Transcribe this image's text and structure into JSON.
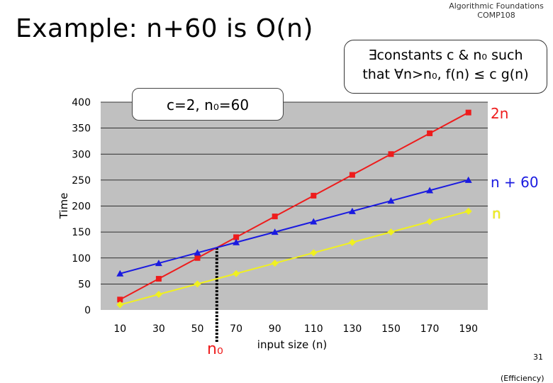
{
  "slide": {
    "title": "Example: n+60 is O(n)",
    "course": [
      "Algorithmic Foundations",
      "COMP108"
    ],
    "definition": [
      "∃constants c & n₀ such",
      "that ∀n>n₀, f(n) ≤ c g(n)"
    ],
    "c_note": "c=2, n₀=60",
    "n0_label": "n₀",
    "page_number": "31",
    "topic": "(Efficiency)"
  },
  "colors": {
    "plot_bg": "#c0c0c0",
    "series_2n": "#ee1c1c",
    "series_n60": "#1a1ae0",
    "series_n": "#f0f020"
  },
  "chart_data": {
    "type": "line",
    "xlabel": "input size (n)",
    "ylabel": "Time",
    "ylim": [
      0,
      400
    ],
    "yticks": [
      0,
      50,
      100,
      150,
      200,
      250,
      300,
      350,
      400
    ],
    "categories": [
      10,
      30,
      50,
      70,
      90,
      110,
      130,
      150,
      170,
      190
    ],
    "series": [
      {
        "name": "2n",
        "marker": "square",
        "values": [
          20,
          60,
          100,
          140,
          180,
          220,
          260,
          300,
          340,
          380
        ]
      },
      {
        "name": "n + 60",
        "marker": "triangle",
        "values": [
          70,
          90,
          110,
          130,
          150,
          170,
          190,
          210,
          230,
          250
        ]
      },
      {
        "name": "n",
        "marker": "diamond",
        "values": [
          10,
          30,
          50,
          70,
          90,
          110,
          130,
          150,
          170,
          190
        ]
      }
    ],
    "vertical_marker_at": 60,
    "intersection_value": 120
  }
}
